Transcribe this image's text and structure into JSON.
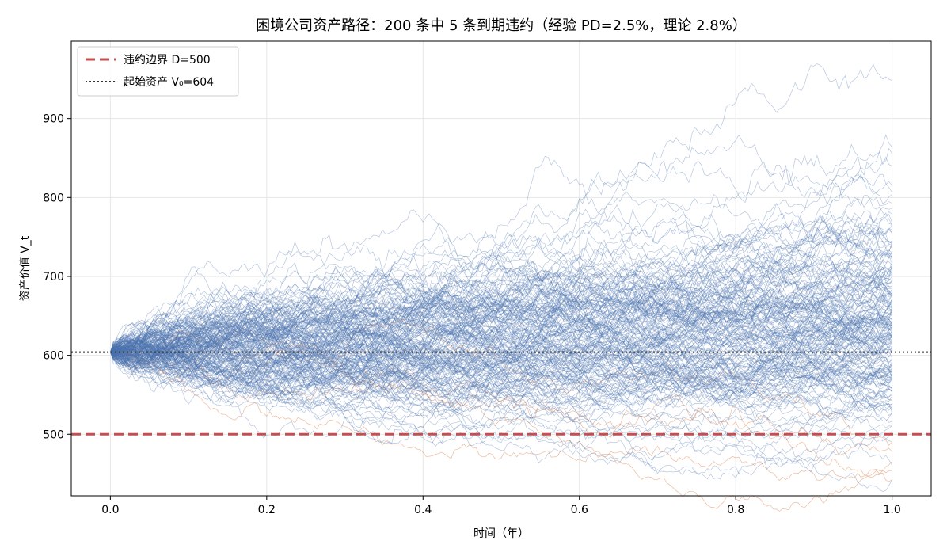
{
  "chart_data": {
    "type": "line",
    "title": "困境公司资产路径：200 条中 5 条到期违约（经验 PD=2.5%，理论 2.8%）",
    "xlabel": "时间（年）",
    "ylabel": "资产价值 V_t",
    "xlim": [
      -0.05,
      1.05
    ],
    "ylim": [
      422,
      998
    ],
    "xticks": [
      0.0,
      0.2,
      0.4,
      0.6,
      0.8,
      1.0
    ],
    "xtick_labels": [
      "0.0",
      "0.2",
      "0.4",
      "0.6",
      "0.8",
      "1.0"
    ],
    "yticks": [
      500,
      600,
      700,
      800,
      900
    ],
    "ytick_labels": [
      "500",
      "600",
      "700",
      "800",
      "900"
    ],
    "grid": true,
    "legend_position": "top-left",
    "default_boundary": 500,
    "initial_value": 604,
    "num_paths": 200,
    "num_default": 5,
    "empirical_pd": "2.5%",
    "theoretical_pd": "2.8%",
    "series": [
      {
        "name": "违约边界 D=500",
        "kind": "hline",
        "y": 500,
        "color": "#c44e52",
        "style": "dashed"
      },
      {
        "name": "起始资产 V₀=604",
        "kind": "hline",
        "y": 604,
        "color": "#333333",
        "style": "dotted"
      }
    ],
    "path_summary": {
      "surviving_color": "#4c72b0",
      "default_color": "#dd8452",
      "min_terminal": 448,
      "max_terminal": 968
    }
  }
}
